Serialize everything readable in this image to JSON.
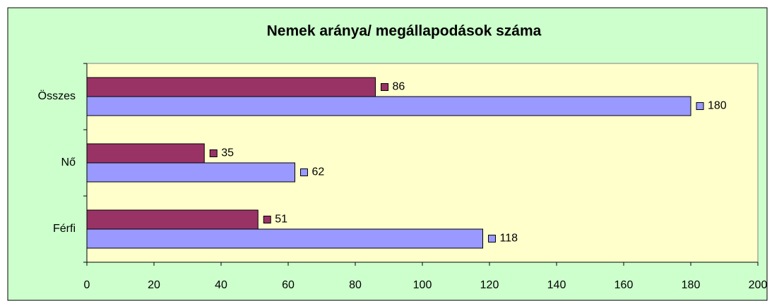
{
  "chart_data": {
    "type": "barh",
    "title": "Nemek aránya/ megállapodások száma",
    "categories": [
      "Férfi",
      "Nő",
      "Összes"
    ],
    "series": [
      {
        "color": "#9999ff",
        "values": [
          118,
          62,
          180
        ]
      },
      {
        "color": "#993366",
        "values": [
          51,
          35,
          86
        ]
      }
    ],
    "xlim": [
      0,
      200
    ],
    "xticks": [
      0,
      20,
      40,
      60,
      80,
      100,
      120,
      140,
      160,
      180,
      200
    ],
    "grid": false
  }
}
